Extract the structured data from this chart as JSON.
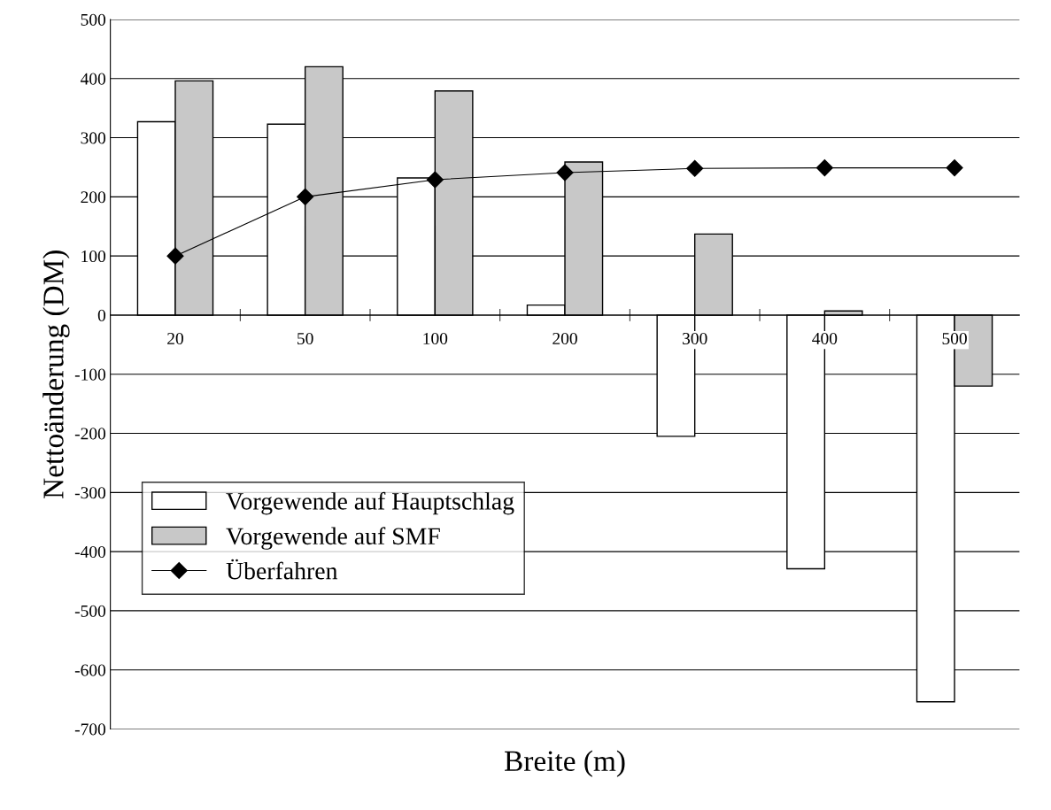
{
  "chart_data": {
    "type": "bar",
    "xlabel": "Breite (m)",
    "ylabel": "Nettoänderung (DM)",
    "categories": [
      "20",
      "50",
      "100",
      "200",
      "300",
      "400",
      "500"
    ],
    "series": [
      {
        "name": "Vorgewende auf Hauptschlag",
        "color": "#ffffff",
        "values": [
          327,
          323,
          232,
          17,
          -205,
          -429,
          -654
        ]
      },
      {
        "name": "Vorgewende auf SMF",
        "color": "#c8c8c8",
        "values": [
          396,
          420,
          379,
          259,
          137,
          7,
          -120
        ]
      },
      {
        "name": "Überfahren",
        "type": "line",
        "color": "#000000",
        "marker": "diamond",
        "values": [
          100,
          200,
          229,
          241,
          248,
          249,
          249
        ]
      }
    ],
    "ylim": [
      -700,
      500
    ],
    "yticks": [
      -700,
      -600,
      -500,
      -400,
      -300,
      -200,
      -100,
      0,
      100,
      200,
      300,
      400,
      500
    ],
    "grid": "y",
    "legend": "bottom left"
  }
}
